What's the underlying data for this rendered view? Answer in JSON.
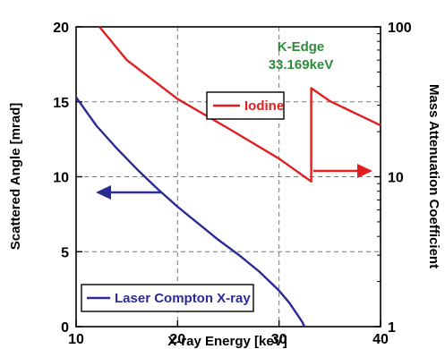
{
  "chart_data": {
    "type": "line",
    "x_axis": {
      "label": "X-ray Energy [keV]",
      "range": [
        10,
        40
      ],
      "ticks": [
        10,
        20,
        30,
        40
      ],
      "tick_labels": [
        "10",
        "20",
        "30",
        "40"
      ]
    },
    "y_axis_left": {
      "label": "Scattered Angle [mrad]",
      "range": [
        0,
        20
      ],
      "ticks": [
        0,
        5,
        10,
        15,
        20
      ],
      "tick_labels": [
        "0",
        "5",
        "10",
        "15",
        "20"
      ]
    },
    "y_axis_right": {
      "label": "Mass Attenuation Coefficient",
      "scale": "log",
      "range": [
        1,
        100
      ],
      "ticks": [
        1,
        10,
        100
      ],
      "tick_labels": [
        "1",
        "10",
        "100"
      ]
    },
    "grid": true,
    "series": [
      {
        "name": "Laser Compton X-ray",
        "axis": "left",
        "color": "#2b2b96",
        "x": [
          10,
          12,
          14,
          16,
          18,
          20,
          22,
          24,
          26,
          28,
          30,
          31,
          31.8,
          32.3,
          32.5
        ],
        "y": [
          15.3,
          13.4,
          11.9,
          10.5,
          9.2,
          8.0,
          6.9,
          5.8,
          4.8,
          3.7,
          2.4,
          1.6,
          0.8,
          0.3,
          0.0
        ]
      },
      {
        "name": "Iodine",
        "axis": "right",
        "color": "#e02020",
        "x": [
          12.3,
          15,
          20,
          25,
          30,
          33.169,
          33.169,
          35,
          40
        ],
        "y": [
          100,
          60,
          33,
          21,
          13.2,
          9.3,
          39,
          32,
          22
        ]
      }
    ],
    "annotations": {
      "k_edge_line1": "K-Edge",
      "k_edge_line2": "33.169keV",
      "k_edge_color": "#2e8b3a"
    },
    "legend": {
      "iodine_label": "Iodine",
      "compton_label": "Laser Compton X-ray"
    }
  }
}
